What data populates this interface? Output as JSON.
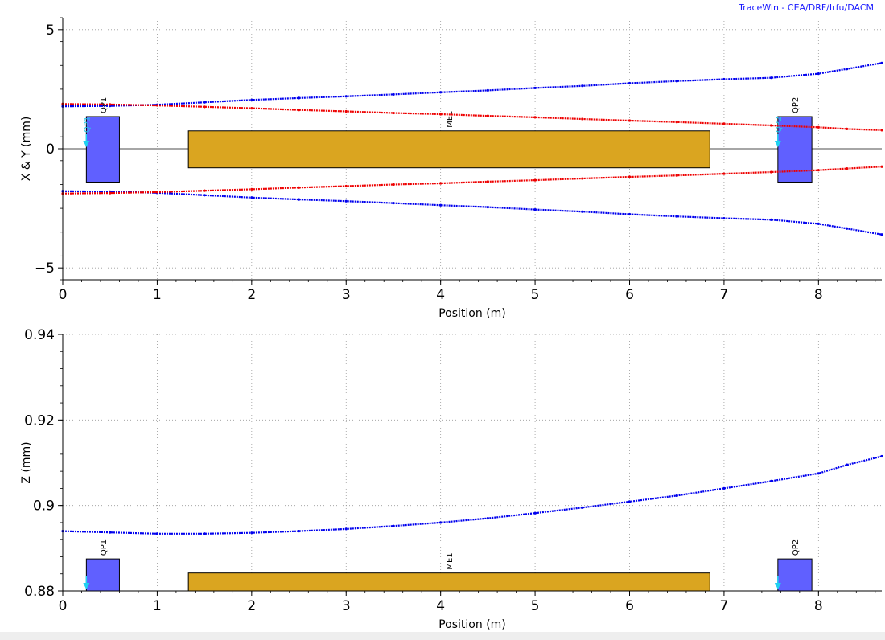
{
  "credit": "TraceWin - CEA/DRF/Irfu/DACM",
  "colors": {
    "x_envelope": "#0000ee",
    "y_envelope": "#ee0000",
    "z_envelope": "#0000ee",
    "quad": "#6060ff",
    "element": "#daa520",
    "marker": "#20d0f0",
    "axis_line": "#888888"
  },
  "chart_data": [
    {
      "type": "line",
      "xlabel": "Position (m)",
      "ylabel": "X & Y (mm)",
      "xlim": [
        0,
        8.67
      ],
      "ylim": [
        -5.5,
        5.5
      ],
      "xticks": [
        0,
        1,
        2,
        3,
        4,
        5,
        6,
        7,
        8
      ],
      "yticks": [
        -5,
        0,
        5
      ],
      "ytick_labels": [
        "−5",
        "0",
        "5"
      ],
      "grid": true,
      "elements": [
        {
          "name": "QP1",
          "type": "quadrupole",
          "x_start": 0.25,
          "x_end": 0.6,
          "y_low": -1.4,
          "y_high": 1.35,
          "marker_label": "QP1",
          "marker_x": 0.25
        },
        {
          "name": "ME1",
          "type": "field_map",
          "x_start": 1.33,
          "x_end": 6.85,
          "y_low": -0.8,
          "y_high": 0.75
        },
        {
          "name": "QP2",
          "type": "quadrupole",
          "x_start": 7.57,
          "x_end": 7.93,
          "y_low": -1.4,
          "y_high": 1.35,
          "marker_label": "QP2",
          "marker_x": 7.57
        }
      ],
      "series": [
        {
          "color_key": "x_envelope",
          "x": [
            0,
            0.5,
            1,
            1.5,
            2,
            2.5,
            3,
            3.5,
            4,
            4.5,
            5,
            5.5,
            6,
            6.5,
            7,
            7.5,
            8,
            8.3,
            8.67
          ],
          "values": [
            1.78,
            1.8,
            1.85,
            1.95,
            2.05,
            2.13,
            2.2,
            2.28,
            2.37,
            2.45,
            2.55,
            2.64,
            2.75,
            2.84,
            2.92,
            2.98,
            3.15,
            3.35,
            3.6
          ]
        },
        {
          "color_key": "x_envelope",
          "x": [
            0,
            0.5,
            1,
            1.5,
            2,
            2.5,
            3,
            3.5,
            4,
            4.5,
            5,
            5.5,
            6,
            6.5,
            7,
            7.5,
            8,
            8.3,
            8.67
          ],
          "values": [
            -1.78,
            -1.8,
            -1.85,
            -1.95,
            -2.05,
            -2.13,
            -2.2,
            -2.28,
            -2.37,
            -2.45,
            -2.55,
            -2.64,
            -2.75,
            -2.84,
            -2.92,
            -2.98,
            -3.15,
            -3.35,
            -3.6
          ]
        },
        {
          "color_key": "y_envelope",
          "x": [
            0,
            0.5,
            1,
            1.5,
            2,
            2.5,
            3,
            3.5,
            4,
            4.5,
            5,
            5.5,
            6,
            6.5,
            7,
            7.5,
            8,
            8.3,
            8.67
          ],
          "values": [
            1.88,
            1.86,
            1.82,
            1.76,
            1.7,
            1.63,
            1.57,
            1.5,
            1.45,
            1.38,
            1.32,
            1.25,
            1.18,
            1.12,
            1.05,
            0.98,
            0.9,
            0.83,
            0.78
          ]
        },
        {
          "color_key": "y_envelope",
          "x": [
            0,
            0.5,
            1,
            1.5,
            2,
            2.5,
            3,
            3.5,
            4,
            4.5,
            5,
            5.5,
            6,
            6.5,
            7,
            7.5,
            8,
            8.3,
            8.67
          ],
          "values": [
            -1.88,
            -1.86,
            -1.82,
            -1.76,
            -1.7,
            -1.63,
            -1.57,
            -1.5,
            -1.45,
            -1.38,
            -1.32,
            -1.25,
            -1.18,
            -1.12,
            -1.05,
            -0.98,
            -0.9,
            -0.83,
            -0.75
          ]
        }
      ]
    },
    {
      "type": "line",
      "xlabel": "Position (m)",
      "ylabel": "Z (mm)",
      "xlim": [
        0,
        8.67
      ],
      "ylim": [
        0.88,
        0.94
      ],
      "xticks": [
        0,
        1,
        2,
        3,
        4,
        5,
        6,
        7,
        8
      ],
      "yticks": [
        0.88,
        0.9,
        0.92,
        0.94
      ],
      "ytick_labels": [
        "0.88",
        "0.9",
        "0.92",
        "0.94"
      ],
      "grid": true,
      "elements": [
        {
          "name": "QP1",
          "type": "quadrupole",
          "x_start": 0.25,
          "x_end": 0.6,
          "y_low": 0.88,
          "y_high": 0.8875,
          "marker_x": 0.25
        },
        {
          "name": "ME1",
          "type": "field_map",
          "x_start": 1.33,
          "x_end": 6.85,
          "y_low": 0.88,
          "y_high": 0.8842
        },
        {
          "name": "QP2",
          "type": "quadrupole",
          "x_start": 7.57,
          "x_end": 7.93,
          "y_low": 0.88,
          "y_high": 0.8875,
          "marker_x": 7.57
        }
      ],
      "series": [
        {
          "color_key": "z_envelope",
          "x": [
            0,
            0.5,
            1,
            1.5,
            2,
            2.5,
            3,
            3.5,
            4,
            4.5,
            5,
            5.5,
            6,
            6.5,
            7,
            7.5,
            8,
            8.3,
            8.67
          ],
          "values": [
            0.894,
            0.8937,
            0.8934,
            0.8934,
            0.8936,
            0.894,
            0.8945,
            0.8952,
            0.896,
            0.897,
            0.8982,
            0.8995,
            0.9009,
            0.9023,
            0.904,
            0.9057,
            0.9075,
            0.9095,
            0.9115
          ]
        }
      ]
    }
  ]
}
